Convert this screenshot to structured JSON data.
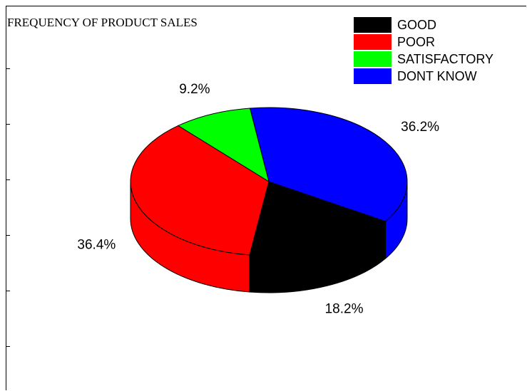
{
  "chart_data": {
    "type": "pie",
    "title": "FREQUENCY OF PRODUCT SALES",
    "categories": [
      "GOOD",
      "POOR",
      "SATISFACTORY",
      "DONT KNOW"
    ],
    "values": [
      18.2,
      36.4,
      9.2,
      36.2
    ],
    "value_labels": [
      "18.2%",
      "36.4%",
      "9.2%",
      "36.2%"
    ],
    "colors": [
      "#000000",
      "#ff0000",
      "#00ff00",
      "#0000ff"
    ],
    "style": "3d",
    "legend_position": "top-right"
  }
}
